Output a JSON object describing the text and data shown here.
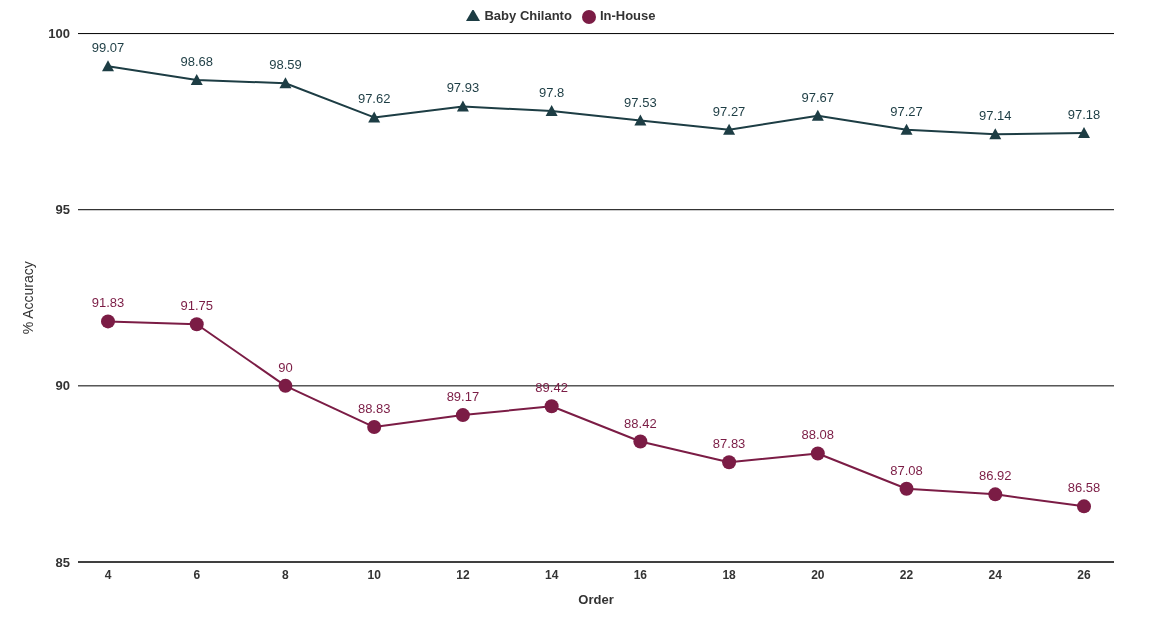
{
  "chart_data": {
    "type": "line",
    "xlabel": "Order",
    "ylabel": "% Accuracy",
    "categories": [
      "4",
      "6",
      "8",
      "10",
      "12",
      "14",
      "16",
      "18",
      "20",
      "22",
      "24",
      "26"
    ],
    "series": [
      {
        "name": "In-House",
        "color": "#7b1c45",
        "marker": "circle",
        "values": [
          91.83,
          91.75,
          90,
          88.83,
          89.17,
          89.42,
          88.42,
          87.83,
          88.08,
          87.08,
          86.92,
          86.58
        ]
      },
      {
        "name": "Baby Chilanto",
        "color": "#1d3d44",
        "marker": "triangle",
        "values": [
          99.07,
          98.68,
          98.59,
          97.62,
          97.93,
          97.8,
          97.53,
          97.27,
          97.67,
          97.27,
          97.14,
          97.18
        ]
      }
    ],
    "ylim": [
      85,
      100
    ],
    "yticks": [
      85,
      90,
      95,
      100
    ],
    "grid": "y",
    "legend": "top",
    "data_labels": true
  }
}
